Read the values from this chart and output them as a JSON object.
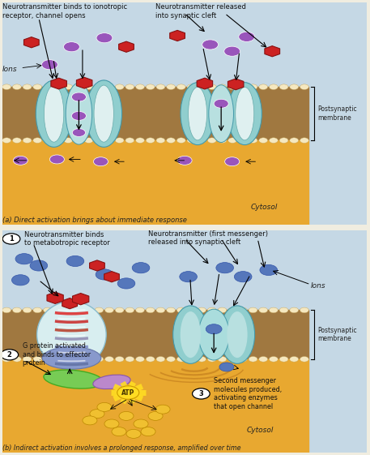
{
  "fig_width": 4.57,
  "fig_height": 5.61,
  "dpi": 100,
  "bg_color": "#f0ede0",
  "panel_a": {
    "synaptic_bg": "#c5d8e5",
    "membrane_color": "#a07840",
    "cytosol_color": "#e8a830",
    "bead_color": "#f5e8c0",
    "bead_edge": "#c8a860",
    "channel_outer": "#90cece",
    "channel_inner": "#b8e0e0",
    "channel_white": "#dff0f0",
    "ion_purple": "#9955bb",
    "ion_blue": "#5577bb",
    "nt_red": "#cc2222",
    "label_a": "(a) Direct activation brings about immediate response",
    "ann1": "Neurotransmitter binds to ionotropic\nreceptor, channel opens",
    "ann2": "Neurotransmitter released\ninto synaptic cleft",
    "ann_ions": "Ions",
    "ann_cytosol": "Cytosol",
    "ann_membrane": "Postsynaptic\nmembrane"
  },
  "panel_b": {
    "synaptic_bg": "#c5d8e5",
    "membrane_color": "#a07840",
    "cytosol_color": "#e8a830",
    "bead_color": "#f5e8c0",
    "bead_edge": "#c8a860",
    "channel_outer": "#90cece",
    "channel_inner": "#b8e0e0",
    "ion_blue": "#5577bb",
    "nt_red": "#cc2222",
    "gprotein_color": "#77cc55",
    "effector_color": "#bb88cc",
    "atp_color": "#ffdd22",
    "sm_color": "#f0c030",
    "wave_color": "#cc8822",
    "label_b": "(b) Indirect activation involves a prolonged response, amplified over time",
    "ann1": "Neurotransmitter binds\nto metabotropic receptor",
    "ann2": "Neurotransmitter (first messenger)\nreleased into synaptic cleft",
    "ann2b": "G protein activated\nand binds to effector\nprotein",
    "ann3": "Second messenger\nmolecules produced,\nactivating enzymes\nthat open channel",
    "ann_ions": "Ions",
    "ann_cytosol": "Cytosol",
    "ann_membrane": "Postsynaptic\nmembrane"
  }
}
